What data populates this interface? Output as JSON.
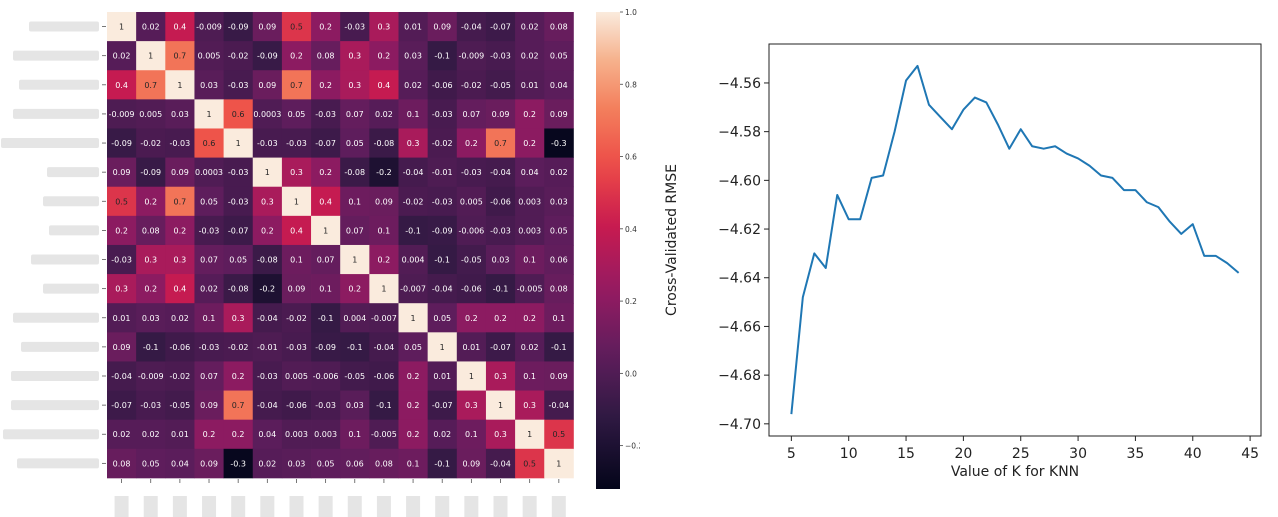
{
  "chart_data": [
    {
      "type": "heatmap",
      "row_labels_redacted": true,
      "col_labels_redacted": true,
      "values": [
        [
          "1",
          "0.02",
          "0.4",
          "-0.009",
          "-0.09",
          "0.09",
          "0.5",
          "0.2",
          "-0.03",
          "0.3",
          "0.01",
          "0.09",
          "-0.04",
          "-0.07",
          "0.02",
          "0.08"
        ],
        [
          "0.02",
          "1",
          "0.7",
          "0.005",
          "-0.02",
          "-0.09",
          "0.2",
          "0.08",
          "0.3",
          "0.2",
          "0.03",
          "-0.1",
          "-0.009",
          "-0.03",
          "0.02",
          "0.05"
        ],
        [
          "0.4",
          "0.7",
          "1",
          "0.03",
          "-0.03",
          "0.09",
          "0.7",
          "0.2",
          "0.3",
          "0.4",
          "0.02",
          "-0.06",
          "-0.02",
          "-0.05",
          "0.01",
          "0.04"
        ],
        [
          "-0.009",
          "0.005",
          "0.03",
          "1",
          "0.6",
          "0.0003",
          "0.05",
          "-0.03",
          "0.07",
          "0.02",
          "0.1",
          "-0.03",
          "0.07",
          "0.09",
          "0.2",
          "0.09"
        ],
        [
          "-0.09",
          "-0.02",
          "-0.03",
          "0.6",
          "1",
          "-0.03",
          "-0.03",
          "-0.07",
          "0.05",
          "-0.08",
          "0.3",
          "-0.02",
          "0.2",
          "0.7",
          "0.2",
          "-0.3"
        ],
        [
          "0.09",
          "-0.09",
          "0.09",
          "0.0003",
          "-0.03",
          "1",
          "0.3",
          "0.2",
          "-0.08",
          "-0.2",
          "-0.04",
          "-0.01",
          "-0.03",
          "-0.04",
          "0.04",
          "0.02"
        ],
        [
          "0.5",
          "0.2",
          "0.7",
          "0.05",
          "-0.03",
          "0.3",
          "1",
          "0.4",
          "0.1",
          "0.09",
          "-0.02",
          "-0.03",
          "0.005",
          "-0.06",
          "0.003",
          "0.03"
        ],
        [
          "0.2",
          "0.08",
          "0.2",
          "-0.03",
          "-0.07",
          "0.2",
          "0.4",
          "1",
          "0.07",
          "0.1",
          "-0.1",
          "-0.09",
          "-0.006",
          "-0.03",
          "0.003",
          "0.05"
        ],
        [
          "-0.03",
          "0.3",
          "0.3",
          "0.07",
          "0.05",
          "-0.08",
          "0.1",
          "0.07",
          "1",
          "0.2",
          "0.004",
          "-0.1",
          "-0.05",
          "0.03",
          "0.1",
          "0.06"
        ],
        [
          "0.3",
          "0.2",
          "0.4",
          "0.02",
          "-0.08",
          "-0.2",
          "0.09",
          "0.1",
          "0.2",
          "1",
          "-0.007",
          "-0.04",
          "-0.06",
          "-0.1",
          "-0.005",
          "0.08"
        ],
        [
          "0.01",
          "0.03",
          "0.02",
          "0.1",
          "0.3",
          "-0.04",
          "-0.02",
          "-0.1",
          "0.004",
          "-0.007",
          "1",
          "0.05",
          "0.2",
          "0.2",
          "0.2",
          "0.1"
        ],
        [
          "0.09",
          "-0.1",
          "-0.06",
          "-0.03",
          "-0.02",
          "-0.01",
          "-0.03",
          "-0.09",
          "-0.1",
          "-0.04",
          "0.05",
          "1",
          "0.01",
          "-0.07",
          "0.02",
          "-0.1"
        ],
        [
          "-0.04",
          "-0.009",
          "-0.02",
          "0.07",
          "0.2",
          "-0.03",
          "0.005",
          "-0.006",
          "-0.05",
          "-0.06",
          "0.2",
          "0.01",
          "1",
          "0.3",
          "0.1",
          "0.09"
        ],
        [
          "-0.07",
          "-0.03",
          "-0.05",
          "0.09",
          "0.7",
          "-0.04",
          "-0.06",
          "-0.03",
          "0.03",
          "-0.1",
          "0.2",
          "-0.07",
          "0.3",
          "1",
          "0.3",
          "-0.04"
        ],
        [
          "0.02",
          "0.02",
          "0.01",
          "0.2",
          "0.2",
          "0.04",
          "0.003",
          "0.003",
          "0.1",
          "-0.005",
          "0.2",
          "0.02",
          "0.1",
          "0.3",
          "1",
          "0.5"
        ],
        [
          "0.08",
          "0.05",
          "0.04",
          "0.09",
          "-0.3",
          "0.02",
          "0.03",
          "0.05",
          "0.06",
          "0.08",
          "0.1",
          "-0.1",
          "0.09",
          "-0.04",
          "0.5",
          "1"
        ]
      ],
      "colorbar": {
        "min": -0.32,
        "max": 1.0,
        "ticks": [
          "1.0",
          "0.8",
          "0.6",
          "0.4",
          "0.2",
          "0.0",
          "−0.2"
        ],
        "tick_values": [
          1.0,
          0.8,
          0.6,
          0.4,
          0.2,
          0.0,
          -0.2
        ]
      }
    },
    {
      "type": "line",
      "xlabel": "Value of K for KNN",
      "ylabel": "Cross-Validated RMSE",
      "xlim": [
        3.05,
        45.95
      ],
      "ylim": [
        -4.705,
        -4.544
      ],
      "xticks": [
        "5",
        "10",
        "15",
        "20",
        "25",
        "30",
        "35",
        "40",
        "45"
      ],
      "xtick_values": [
        5,
        10,
        15,
        20,
        25,
        30,
        35,
        40,
        45
      ],
      "yticks": [
        "−4.56",
        "−4.58",
        "−4.60",
        "−4.62",
        "−4.64",
        "−4.66",
        "−4.68",
        "−4.70"
      ],
      "ytick_values": [
        -4.56,
        -4.58,
        -4.6,
        -4.62,
        -4.64,
        -4.66,
        -4.68,
        -4.7
      ],
      "grid": false,
      "series": [
        {
          "color": "#1f77b4",
          "x": [
            5,
            6,
            7,
            8,
            9,
            10,
            11,
            12,
            13,
            14,
            15,
            16,
            17,
            18,
            19,
            20,
            21,
            22,
            23,
            24,
            25,
            26,
            27,
            28,
            29,
            30,
            31,
            32,
            33,
            34,
            35,
            36,
            37,
            38,
            39,
            40,
            41,
            42,
            43,
            44
          ],
          "y": [
            -4.696,
            -4.648,
            -4.63,
            -4.636,
            -4.606,
            -4.616,
            -4.616,
            -4.599,
            -4.598,
            -4.58,
            -4.559,
            -4.553,
            -4.569,
            -4.574,
            -4.579,
            -4.571,
            -4.566,
            -4.568,
            -4.577,
            -4.587,
            -4.579,
            -4.586,
            -4.587,
            -4.586,
            -4.589,
            -4.591,
            -4.594,
            -4.598,
            -4.599,
            -4.604,
            -4.604,
            -4.609,
            -4.611,
            -4.617,
            -4.622,
            -4.618,
            -4.631,
            -4.631,
            -4.634,
            -4.638
          ]
        }
      ]
    }
  ]
}
